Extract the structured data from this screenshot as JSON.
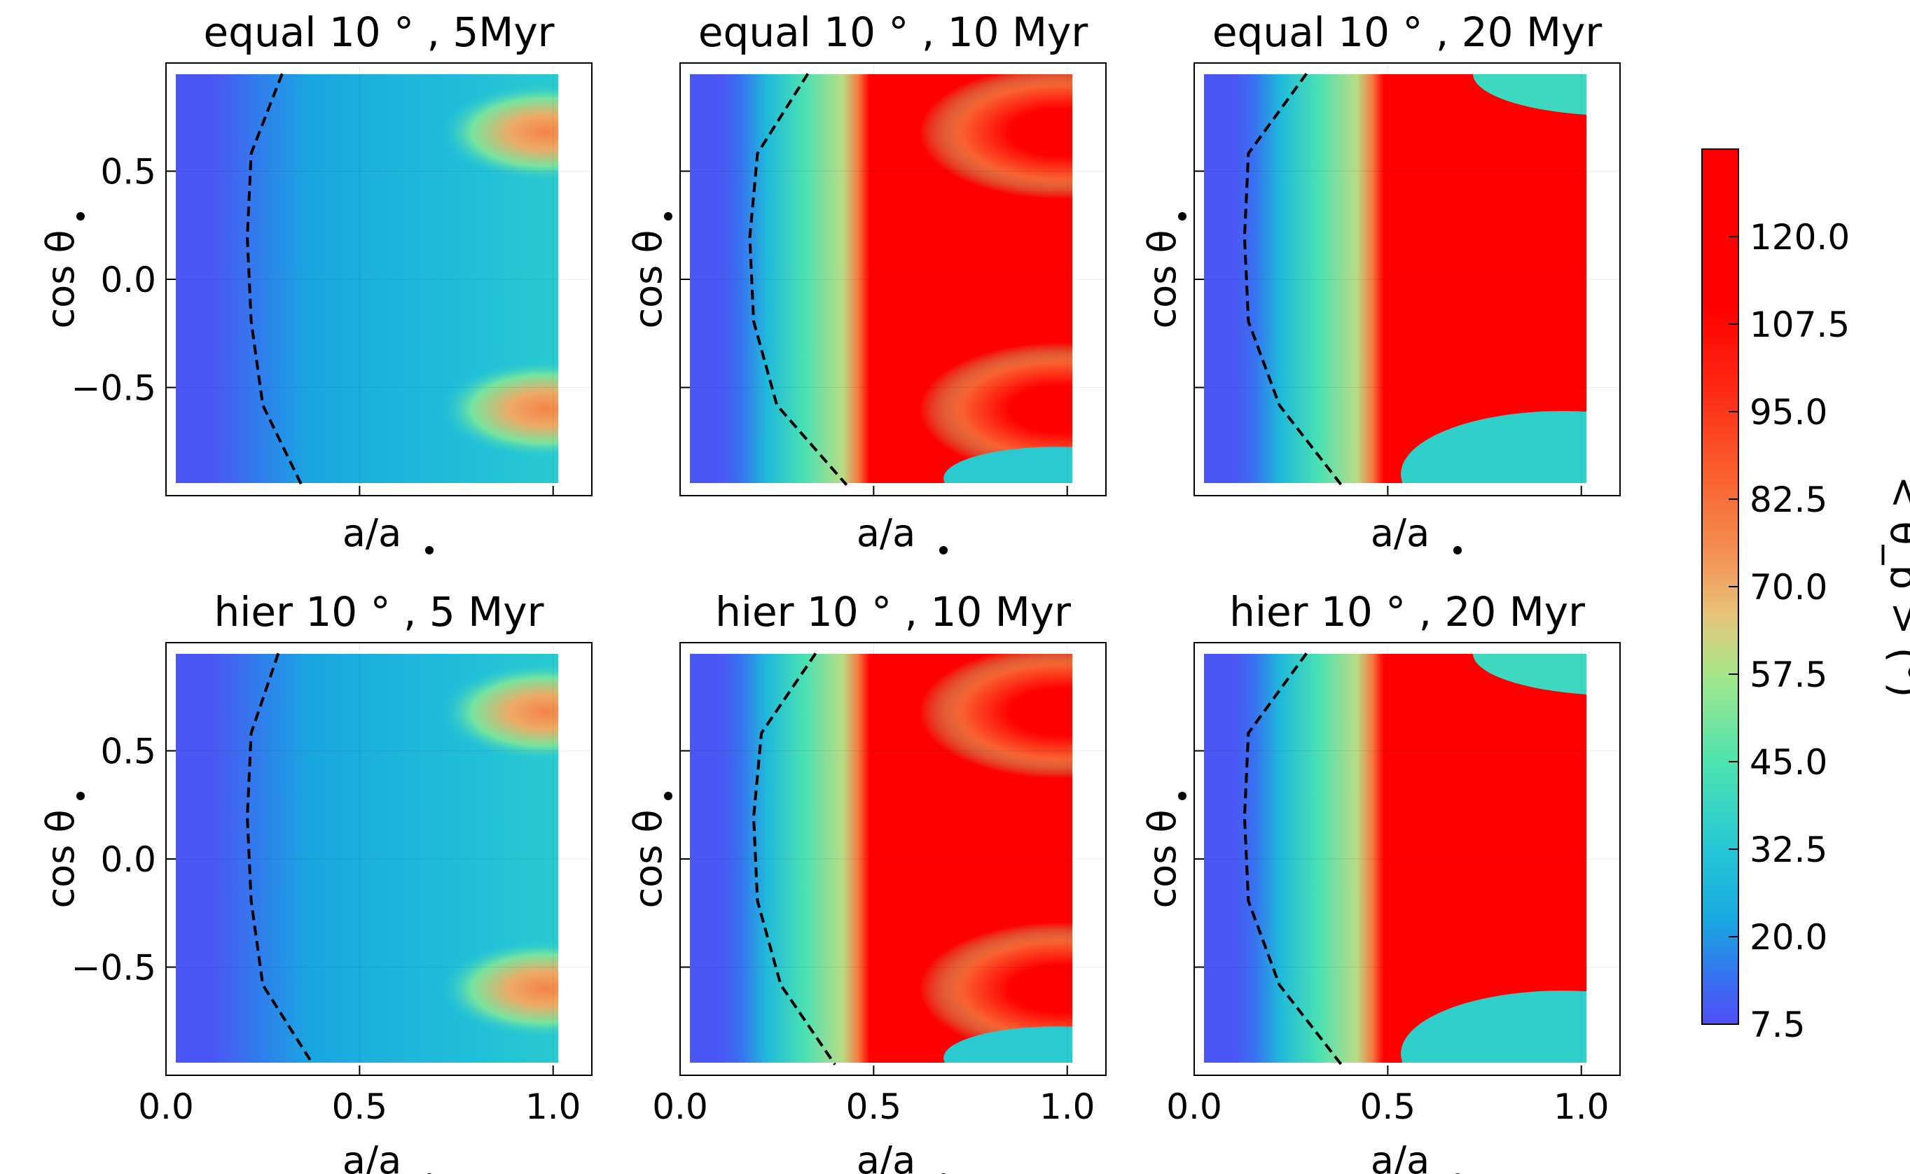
{
  "chart_data": {
    "type": "heatmap",
    "rendering": "filled-contour",
    "xlabel": "a/a",
    "ylabel": "cos θ",
    "xlim": [
      0.0,
      1.1
    ],
    "ylim": [
      -1.0,
      1.0
    ],
    "x_ticks": [
      "0.0",
      "0.5",
      "1.0"
    ],
    "y_ticks": [
      "0.5",
      "0.0",
      "−0.5"
    ],
    "dashed_contour": "boundary line (dashed, black)",
    "colorbar": {
      "label": "< θ_b > (°)",
      "range": [
        7.5,
        132.5
      ],
      "ticks": [
        "7.5",
        "20.0",
        "32.5",
        "45.0",
        "57.5",
        "70.0",
        "82.5",
        "95.0",
        "107.5",
        "120.0"
      ],
      "colormap": "rainbow"
    },
    "panels": [
      {
        "title": "equal 10 ° , 5Myr",
        "max_value": 78,
        "front_x": [
          0.3,
          0.22,
          0.21,
          0.22,
          0.25,
          0.35
        ]
      },
      {
        "title": "equal 10 ° , 10 Myr",
        "max_value": 132,
        "front_x": [
          0.33,
          0.2,
          0.18,
          0.19,
          0.25,
          0.43
        ]
      },
      {
        "title": "equal 10 ° , 20 Myr",
        "max_value": 132,
        "front_x": [
          0.29,
          0.14,
          0.13,
          0.14,
          0.22,
          0.38
        ]
      },
      {
        "title": "hier 10 ° , 5 Myr",
        "max_value": 78,
        "front_x": [
          0.29,
          0.22,
          0.21,
          0.22,
          0.25,
          0.38
        ]
      },
      {
        "title": "hier 10 ° , 10 Myr",
        "max_value": 132,
        "front_x": [
          0.35,
          0.21,
          0.19,
          0.2,
          0.26,
          0.4
        ]
      },
      {
        "title": "hier 10 ° , 20 Myr",
        "max_value": 132,
        "front_x": [
          0.29,
          0.14,
          0.13,
          0.14,
          0.22,
          0.38
        ]
      }
    ]
  }
}
